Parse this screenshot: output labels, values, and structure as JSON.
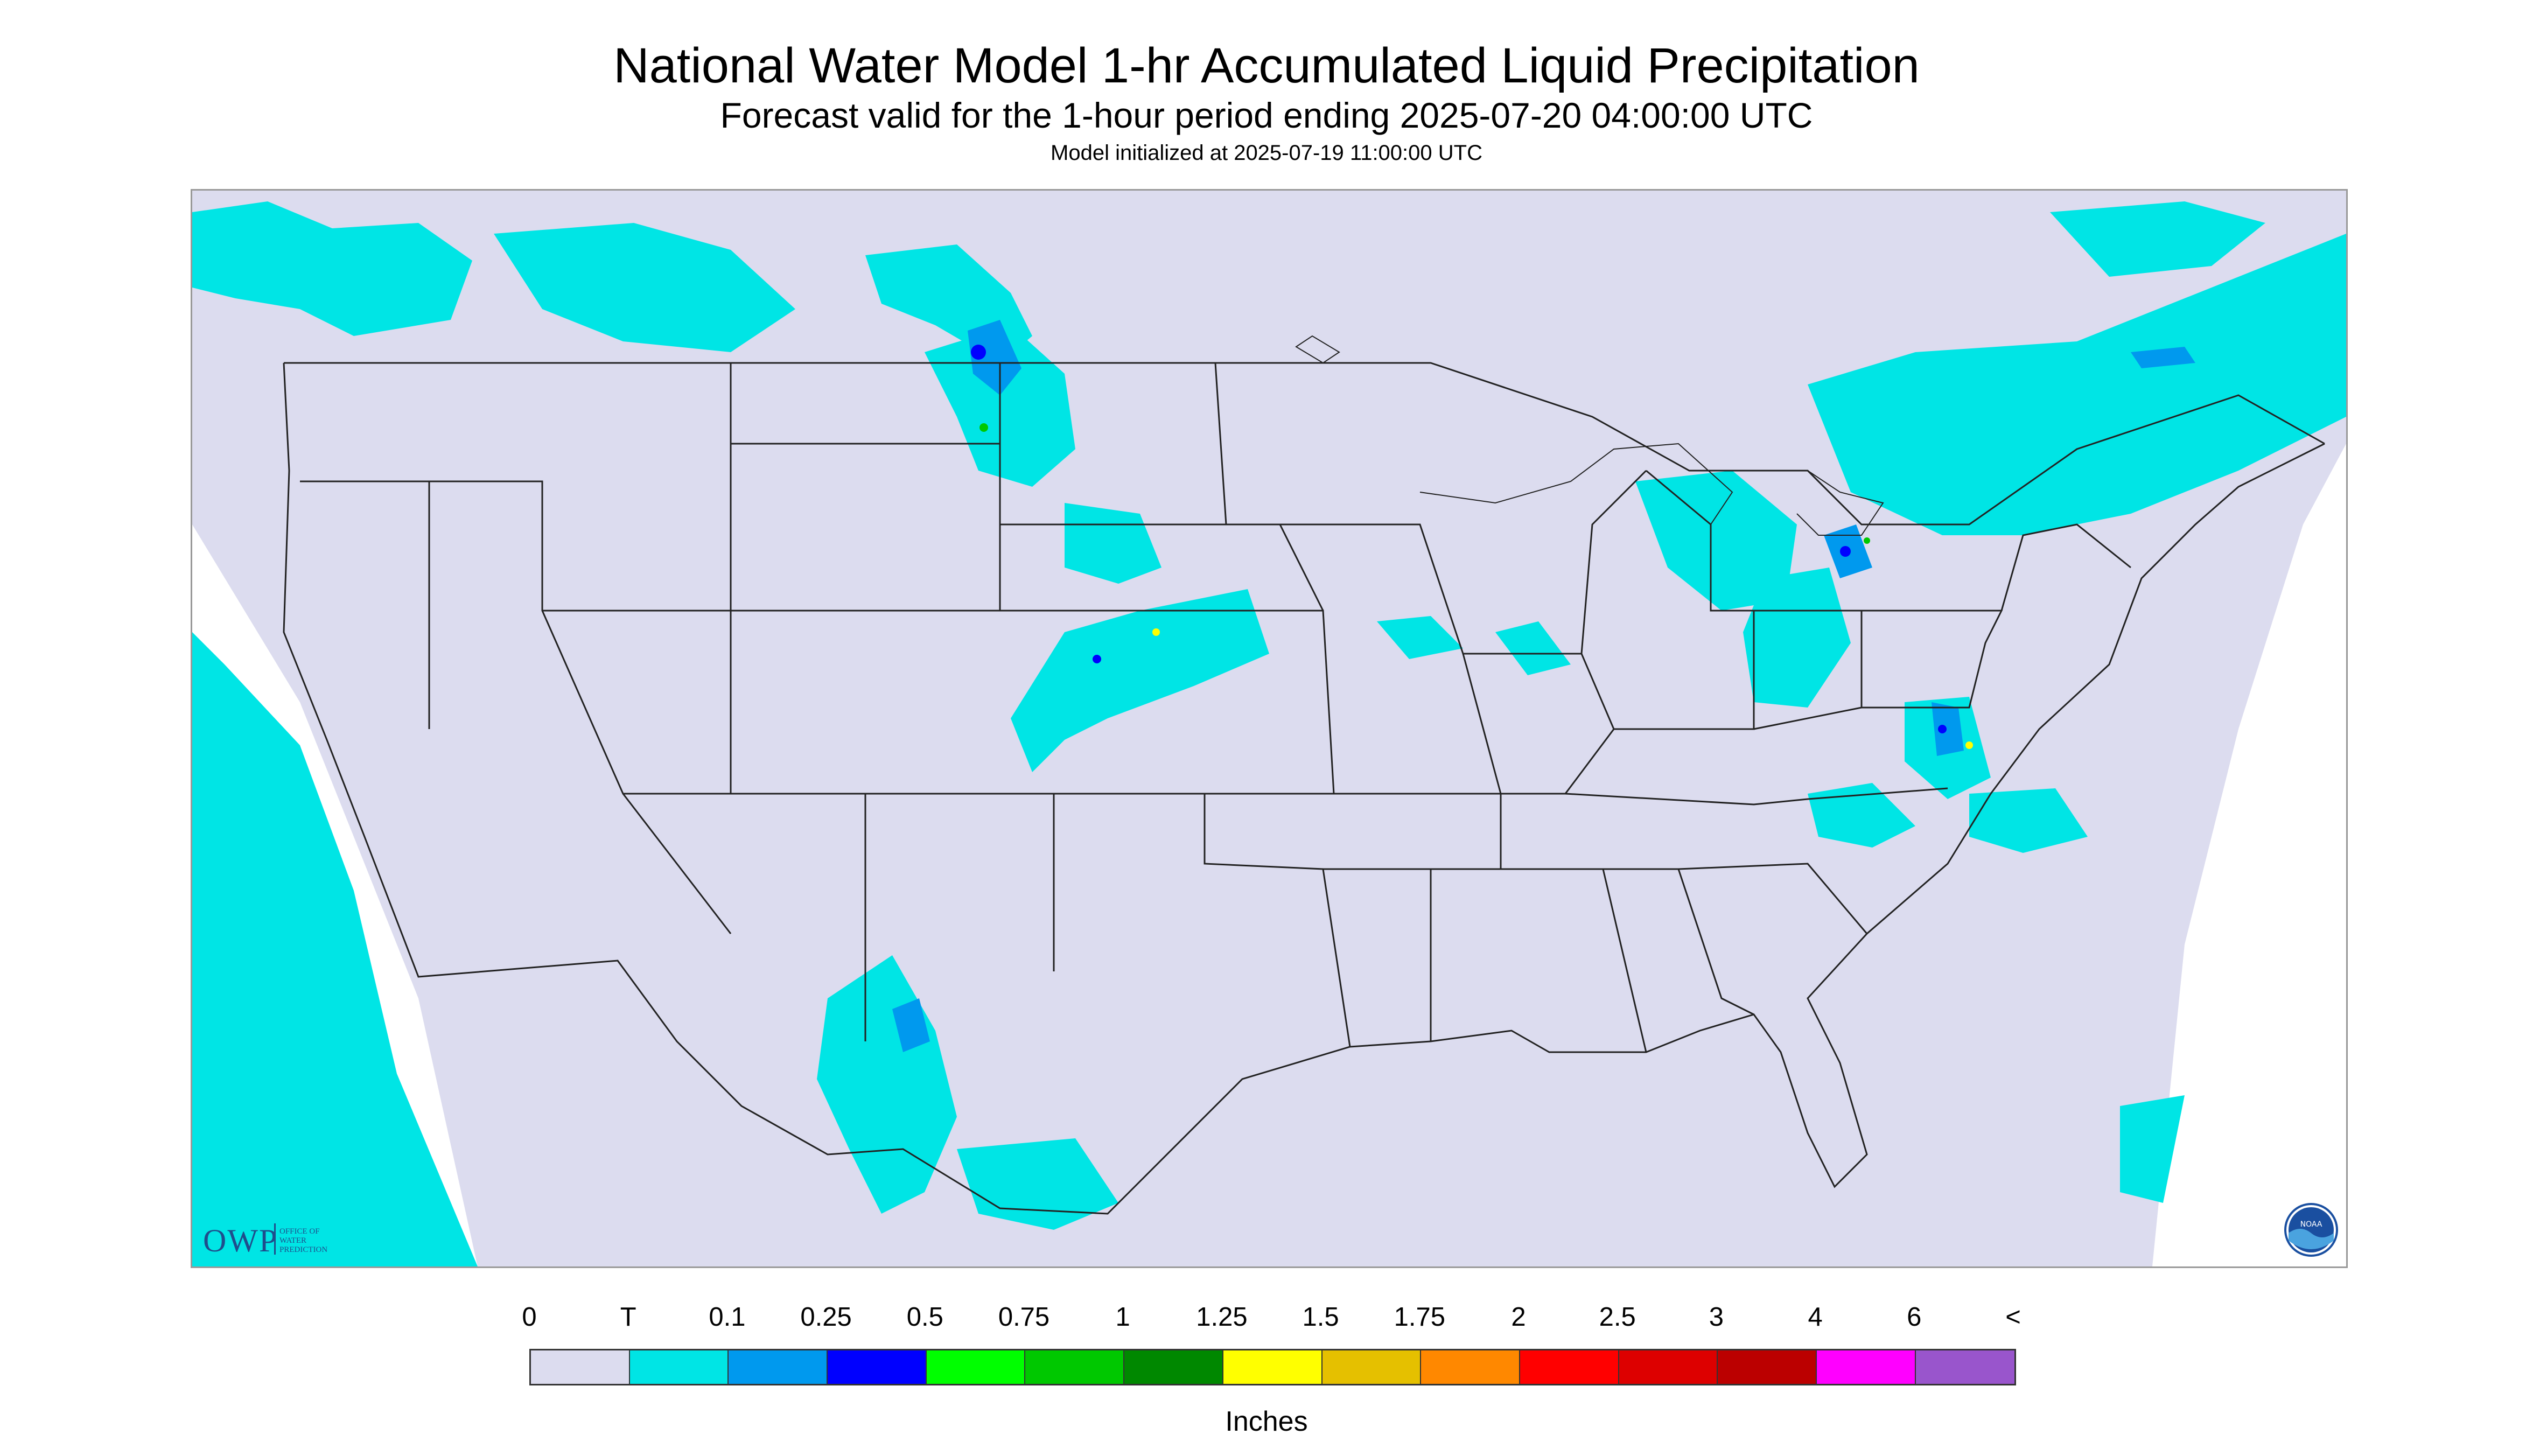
{
  "title": "National Water Model 1-hr Accumulated Liquid Precipitation",
  "subtitle": "Forecast valid for the 1-hour period ending 2025-07-20 04:00:00 UTC",
  "init_line": "Model initialized at 2025-07-19 11:00:00 UTC",
  "logos": {
    "owp_big": "OWP",
    "owp_small_1": "OFFICE OF",
    "owp_small_2": "WATER",
    "owp_small_3": "PREDICTION",
    "noaa": "NOAA"
  },
  "legend": {
    "units": "Inches",
    "labels": [
      "0",
      "T",
      "0.1",
      "0.25",
      "0.5",
      "0.75",
      "1",
      "1.25",
      "1.5",
      "1.75",
      "2",
      "2.5",
      "3",
      "4",
      "6",
      "<"
    ],
    "colors": [
      "#dcdcef",
      "#00e5e5",
      "#0099ee",
      "#0000ff",
      "#00ff00",
      "#00c800",
      "#008800",
      "#ffff00",
      "#e5c000",
      "#ff8800",
      "#ff0000",
      "#dd0000",
      "#bb0000",
      "#ff00ff",
      "#9955cc"
    ]
  },
  "colors": {
    "background_land": "#dcdcef",
    "trace_precip": "#00e5e5",
    "light_precip": "#0099ee",
    "moderate_precip": "#0000ff",
    "boundary": "#222222"
  }
}
